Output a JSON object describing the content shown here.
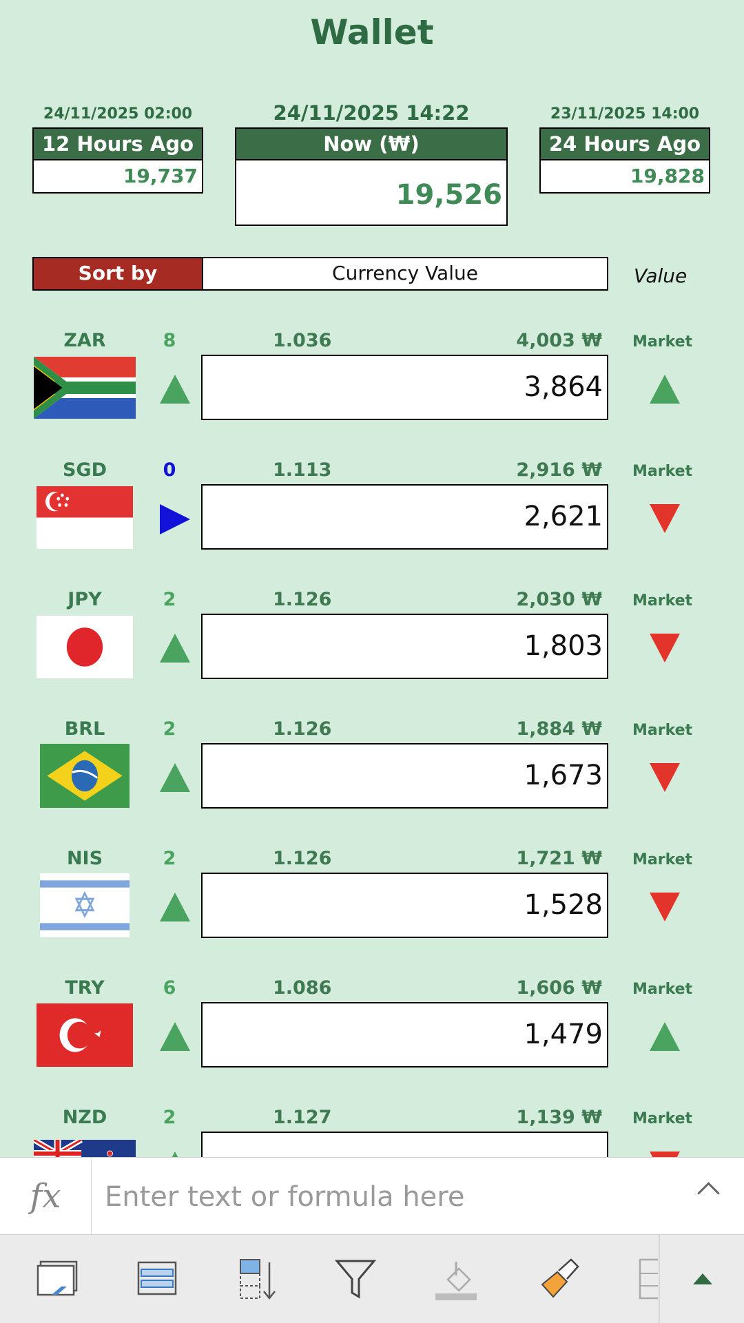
{
  "title": "Wallet",
  "header": {
    "left": {
      "date": "24/11/2025 02:00",
      "label": "12 Hours Ago",
      "value": "19,737"
    },
    "center": {
      "date": "24/11/2025 14:22",
      "label": "Now (₩)",
      "value": "19,526"
    },
    "right": {
      "date": "23/11/2025 14:00",
      "label": "24 Hours Ago",
      "value": "19,828"
    }
  },
  "sort": {
    "label": "Sort by",
    "value": "Currency Value",
    "column_label": "Value"
  },
  "rows": [
    {
      "code": "ZAR",
      "count": "8",
      "count_color": "#4aa35e",
      "rate": "1.036",
      "won": "4,003 ₩",
      "market": "Market",
      "amount": "3,864",
      "trend": "up",
      "market_trend": "up",
      "flag": "south-africa-flag"
    },
    {
      "code": "SGD",
      "count": "0",
      "count_color": "#1212d8",
      "rate": "1.113",
      "won": "2,916 ₩",
      "market": "Market",
      "amount": "2,621",
      "trend": "flat",
      "market_trend": "down",
      "flag": "singapore-flag"
    },
    {
      "code": "JPY",
      "count": "2",
      "count_color": "#4aa35e",
      "rate": "1.126",
      "won": "2,030 ₩",
      "market": "Market",
      "amount": "1,803",
      "trend": "up",
      "market_trend": "down",
      "flag": "japan-flag"
    },
    {
      "code": "BRL",
      "count": "2",
      "count_color": "#4aa35e",
      "rate": "1.126",
      "won": "1,884 ₩",
      "market": "Market",
      "amount": "1,673",
      "trend": "up",
      "market_trend": "down",
      "flag": "brazil-flag"
    },
    {
      "code": "NIS",
      "count": "2",
      "count_color": "#4aa35e",
      "rate": "1.126",
      "won": "1,721 ₩",
      "market": "Market",
      "amount": "1,528",
      "trend": "up",
      "market_trend": "down",
      "flag": "israel-flag"
    },
    {
      "code": "TRY",
      "count": "6",
      "count_color": "#4aa35e",
      "rate": "1.086",
      "won": "1,606 ₩",
      "market": "Market",
      "amount": "1,479",
      "trend": "up",
      "market_trend": "up",
      "flag": "turkey-flag"
    },
    {
      "code": "NZD",
      "count": "2",
      "count_color": "#4aa35e",
      "rate": "1.127",
      "won": "1,139 ₩",
      "market": "Market",
      "amount": "",
      "trend": "up",
      "market_trend": "down",
      "flag": "new-zealand-flag"
    }
  ],
  "formula_bar": {
    "fx": "fx",
    "placeholder": "Enter text or formula here"
  },
  "toolbar": {
    "icons": [
      "freeze-panes-icon",
      "table-format-icon",
      "sort-icon",
      "filter-icon",
      "fill-color-icon",
      "format-painter-icon",
      "cell-styles-icon",
      "expand-up-icon"
    ]
  }
}
